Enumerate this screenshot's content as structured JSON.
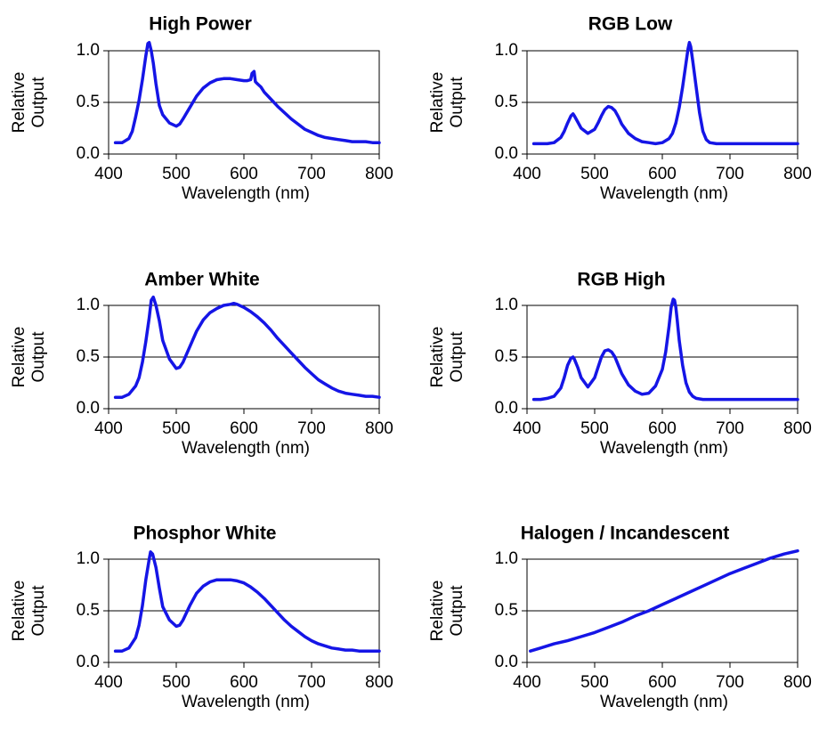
{
  "colors": {
    "series": "#1515e6",
    "axis": "#000000",
    "grid": "#000000",
    "background": "#ffffff"
  },
  "chart_data": [
    {
      "type": "line",
      "title": "High Power",
      "xlabel": "Wavelength (nm)",
      "ylabel": [
        "Relative",
        "Output"
      ],
      "xlim": [
        400,
        800
      ],
      "ylim": [
        0,
        1
      ],
      "xticks": [
        "400",
        "500",
        "600",
        "700",
        "800"
      ],
      "yticks": [
        "0.0",
        "0.5",
        "1.0"
      ],
      "grid": true,
      "series": [
        {
          "x": [
            410,
            420,
            430,
            435,
            440,
            445,
            450,
            455,
            458,
            460,
            463,
            466,
            470,
            475,
            480,
            490,
            500,
            505,
            510,
            520,
            530,
            540,
            550,
            560,
            570,
            580,
            590,
            600,
            605,
            610,
            612,
            615,
            617,
            620,
            625,
            630,
            640,
            650,
            660,
            670,
            680,
            690,
            700,
            710,
            720,
            730,
            740,
            750,
            760,
            770,
            780,
            790,
            800
          ],
          "y": [
            0.11,
            0.11,
            0.15,
            0.22,
            0.36,
            0.52,
            0.72,
            0.95,
            1.07,
            1.08,
            1.0,
            0.88,
            0.68,
            0.47,
            0.38,
            0.3,
            0.27,
            0.29,
            0.34,
            0.45,
            0.56,
            0.64,
            0.69,
            0.72,
            0.73,
            0.73,
            0.72,
            0.71,
            0.71,
            0.72,
            0.78,
            0.8,
            0.7,
            0.68,
            0.65,
            0.6,
            0.53,
            0.46,
            0.4,
            0.34,
            0.29,
            0.24,
            0.21,
            0.18,
            0.16,
            0.15,
            0.14,
            0.13,
            0.12,
            0.12,
            0.12,
            0.11,
            0.11
          ]
        }
      ]
    },
    {
      "type": "line",
      "title": "RGB Low",
      "xlabel": "Wavelength (nm)",
      "ylabel": [
        "Relative",
        "Output"
      ],
      "xlim": [
        400,
        800
      ],
      "ylim": [
        0,
        1
      ],
      "xticks": [
        "400",
        "500",
        "600",
        "700",
        "800"
      ],
      "yticks": [
        "0.0",
        "0.5",
        "1.0"
      ],
      "grid": true,
      "series": [
        {
          "x": [
            410,
            420,
            430,
            440,
            450,
            455,
            460,
            465,
            468,
            470,
            475,
            480,
            490,
            500,
            505,
            510,
            515,
            520,
            525,
            530,
            535,
            540,
            550,
            560,
            570,
            580,
            590,
            600,
            610,
            615,
            620,
            625,
            630,
            635,
            638,
            640,
            642,
            645,
            650,
            655,
            660,
            665,
            670,
            680,
            690,
            700,
            720,
            740,
            760,
            780,
            800
          ],
          "y": [
            0.1,
            0.1,
            0.1,
            0.11,
            0.16,
            0.22,
            0.3,
            0.37,
            0.39,
            0.37,
            0.31,
            0.25,
            0.2,
            0.24,
            0.3,
            0.37,
            0.43,
            0.46,
            0.45,
            0.42,
            0.36,
            0.29,
            0.2,
            0.15,
            0.12,
            0.11,
            0.1,
            0.11,
            0.15,
            0.2,
            0.3,
            0.45,
            0.65,
            0.88,
            1.02,
            1.08,
            1.04,
            0.9,
            0.65,
            0.4,
            0.22,
            0.14,
            0.11,
            0.1,
            0.1,
            0.1,
            0.1,
            0.1,
            0.1,
            0.1,
            0.1
          ]
        }
      ]
    },
    {
      "type": "line",
      "title": "Amber White",
      "xlabel": "Wavelength (nm)",
      "ylabel": [
        "Relative",
        "Output"
      ],
      "xlim": [
        400,
        800
      ],
      "ylim": [
        0,
        1
      ],
      "xticks": [
        "400",
        "500",
        "600",
        "700",
        "800"
      ],
      "yticks": [
        "0.0",
        "0.5",
        "1.0"
      ],
      "grid": true,
      "series": [
        {
          "x": [
            410,
            420,
            430,
            440,
            445,
            450,
            455,
            460,
            463,
            466,
            470,
            475,
            480,
            490,
            500,
            505,
            510,
            520,
            530,
            540,
            550,
            560,
            570,
            580,
            585,
            590,
            600,
            610,
            620,
            630,
            640,
            650,
            660,
            670,
            680,
            690,
            700,
            710,
            720,
            730,
            740,
            750,
            760,
            770,
            780,
            790,
            800
          ],
          "y": [
            0.11,
            0.11,
            0.14,
            0.22,
            0.3,
            0.45,
            0.65,
            0.88,
            1.05,
            1.08,
            1.0,
            0.85,
            0.66,
            0.48,
            0.39,
            0.4,
            0.45,
            0.6,
            0.75,
            0.86,
            0.93,
            0.97,
            1.0,
            1.01,
            1.02,
            1.01,
            0.98,
            0.94,
            0.89,
            0.83,
            0.76,
            0.68,
            0.61,
            0.54,
            0.47,
            0.4,
            0.34,
            0.28,
            0.24,
            0.2,
            0.17,
            0.15,
            0.14,
            0.13,
            0.12,
            0.12,
            0.11
          ]
        }
      ]
    },
    {
      "type": "line",
      "title": "RGB High",
      "xlabel": "Wavelength (nm)",
      "ylabel": [
        "Relative",
        "Output"
      ],
      "xlim": [
        400,
        800
      ],
      "ylim": [
        0,
        1
      ],
      "xticks": [
        "400",
        "500",
        "600",
        "700",
        "800"
      ],
      "yticks": [
        "0.0",
        "0.5",
        "1.0"
      ],
      "grid": true,
      "series": [
        {
          "x": [
            410,
            420,
            430,
            440,
            450,
            455,
            460,
            465,
            468,
            470,
            475,
            480,
            490,
            500,
            505,
            510,
            515,
            520,
            525,
            530,
            535,
            540,
            550,
            560,
            570,
            580,
            590,
            600,
            605,
            610,
            613,
            616,
            618,
            620,
            622,
            625,
            630,
            635,
            640,
            645,
            650,
            660,
            680,
            700,
            720,
            740,
            760,
            780,
            800
          ],
          "y": [
            0.09,
            0.09,
            0.1,
            0.12,
            0.2,
            0.3,
            0.42,
            0.49,
            0.5,
            0.48,
            0.4,
            0.3,
            0.21,
            0.3,
            0.4,
            0.5,
            0.56,
            0.57,
            0.55,
            0.5,
            0.42,
            0.34,
            0.23,
            0.17,
            0.14,
            0.15,
            0.22,
            0.38,
            0.55,
            0.8,
            0.98,
            1.06,
            1.05,
            0.98,
            0.86,
            0.66,
            0.42,
            0.25,
            0.16,
            0.12,
            0.1,
            0.09,
            0.09,
            0.09,
            0.09,
            0.09,
            0.09,
            0.09,
            0.09
          ]
        }
      ]
    },
    {
      "type": "line",
      "title": "Phosphor White",
      "xlabel": "Wavelength (nm)",
      "ylabel": [
        "Relative",
        "Output"
      ],
      "xlim": [
        400,
        800
      ],
      "ylim": [
        0,
        1
      ],
      "xticks": [
        "400",
        "500",
        "600",
        "700",
        "800"
      ],
      "yticks": [
        "0.0",
        "0.5",
        "1.0"
      ],
      "grid": true,
      "series": [
        {
          "x": [
            410,
            420,
            430,
            440,
            445,
            450,
            455,
            460,
            462,
            465,
            470,
            475,
            480,
            490,
            500,
            505,
            510,
            520,
            530,
            540,
            550,
            560,
            570,
            580,
            590,
            600,
            610,
            620,
            630,
            640,
            650,
            660,
            670,
            680,
            690,
            700,
            710,
            720,
            730,
            740,
            750,
            760,
            770,
            780,
            790,
            800
          ],
          "y": [
            0.11,
            0.11,
            0.14,
            0.24,
            0.36,
            0.55,
            0.8,
            1.0,
            1.07,
            1.05,
            0.92,
            0.72,
            0.54,
            0.41,
            0.35,
            0.36,
            0.41,
            0.55,
            0.67,
            0.74,
            0.78,
            0.8,
            0.8,
            0.8,
            0.79,
            0.77,
            0.73,
            0.68,
            0.62,
            0.55,
            0.48,
            0.41,
            0.35,
            0.3,
            0.25,
            0.21,
            0.18,
            0.16,
            0.14,
            0.13,
            0.12,
            0.12,
            0.11,
            0.11,
            0.11,
            0.11
          ]
        }
      ]
    },
    {
      "type": "line",
      "title": "Halogen / Incandescent",
      "xlabel": "Wavelength (nm)",
      "ylabel": [
        "Relative",
        "Output"
      ],
      "xlim": [
        400,
        800
      ],
      "ylim": [
        0,
        1
      ],
      "xticks": [
        "400",
        "500",
        "600",
        "700",
        "800"
      ],
      "yticks": [
        "0.0",
        "0.5",
        "1.0"
      ],
      "grid": true,
      "series": [
        {
          "x": [
            405,
            420,
            440,
            460,
            480,
            500,
            520,
            540,
            560,
            580,
            600,
            620,
            640,
            660,
            680,
            700,
            720,
            740,
            760,
            780,
            800
          ],
          "y": [
            0.11,
            0.14,
            0.18,
            0.21,
            0.25,
            0.29,
            0.34,
            0.39,
            0.45,
            0.5,
            0.56,
            0.62,
            0.68,
            0.74,
            0.8,
            0.86,
            0.91,
            0.96,
            1.01,
            1.05,
            1.08
          ]
        }
      ]
    }
  ]
}
